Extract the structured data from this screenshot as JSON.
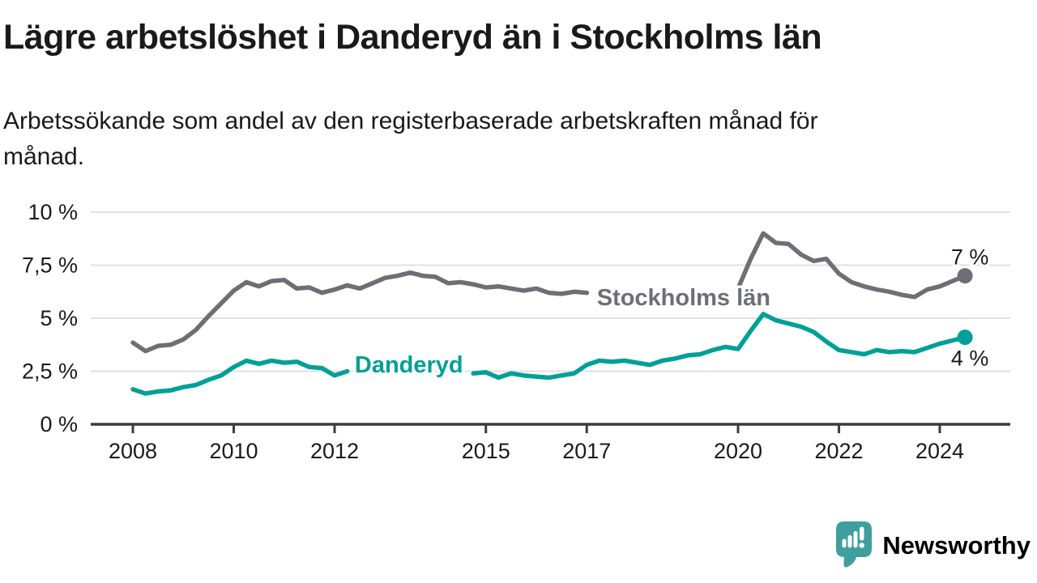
{
  "chart_data": {
    "type": "line",
    "title": "Lägre arbetslöshet i Danderyd än i Stockholms län",
    "subtitle": "Arbetssökande som andel av den registerbaserade arbetskraften månad för månad.",
    "unit": "%",
    "grid": "horizontal",
    "legend": "inline-labels",
    "ylim": [
      0,
      10
    ],
    "xlim": [
      2007.2,
      2025.4
    ],
    "x": [
      2008,
      2008.25,
      2008.5,
      2008.75,
      2009,
      2009.25,
      2009.5,
      2009.75,
      2010,
      2010.25,
      2010.5,
      2010.75,
      2011,
      2011.25,
      2011.5,
      2011.75,
      2012,
      2012.25,
      2012.5,
      2012.75,
      2013,
      2013.25,
      2013.5,
      2013.75,
      2014,
      2014.25,
      2014.5,
      2014.75,
      2015,
      2015.25,
      2015.5,
      2015.75,
      2016,
      2016.25,
      2016.5,
      2016.75,
      2017,
      2017.25,
      2017.5,
      2017.75,
      2018,
      2018.25,
      2018.5,
      2018.75,
      2019,
      2019.25,
      2019.5,
      2019.75,
      2020,
      2020.25,
      2020.5,
      2020.75,
      2021,
      2021.25,
      2021.5,
      2021.75,
      2022,
      2022.25,
      2022.5,
      2022.75,
      2023,
      2023.25,
      2023.5,
      2023.75,
      2024,
      2024.25,
      2024.5
    ],
    "series": [
      {
        "name": "Stockholms län",
        "color": "#6e6e77",
        "values": [
          3.85,
          3.45,
          3.7,
          3.75,
          4.0,
          4.45,
          5.1,
          5.7,
          6.3,
          6.7,
          6.5,
          6.75,
          6.8,
          6.4,
          6.45,
          6.2,
          6.35,
          6.55,
          6.4,
          6.65,
          6.9,
          7.0,
          7.15,
          7.0,
          6.95,
          6.65,
          6.7,
          6.6,
          6.45,
          6.5,
          6.4,
          6.3,
          6.4,
          6.2,
          6.15,
          6.25,
          6.2,
          6.1,
          6.05,
          6.0,
          5.95,
          5.9,
          5.9,
          5.95,
          6.0,
          6.0,
          6.05,
          6.1,
          6.4,
          7.8,
          9.0,
          8.55,
          8.5,
          8.0,
          7.7,
          7.8,
          7.1,
          6.7,
          6.5,
          6.35,
          6.25,
          6.1,
          6.0,
          6.35,
          6.5,
          6.75,
          7.0
        ],
        "label_gap": [
          2017.1,
          2019.9
        ],
        "label_pos": {
          "x": 2017.2,
          "y": 5.61
        },
        "end_label": "7 %",
        "end_label_side": "above"
      },
      {
        "name": "Danderyd",
        "color": "#00a098",
        "values": [
          1.65,
          1.45,
          1.55,
          1.6,
          1.75,
          1.85,
          2.1,
          2.3,
          2.7,
          3.0,
          2.85,
          3.0,
          2.9,
          2.95,
          2.7,
          2.65,
          2.3,
          2.5,
          2.55,
          2.6,
          2.65,
          2.7,
          2.7,
          2.65,
          2.7,
          2.6,
          2.55,
          2.4,
          2.45,
          2.2,
          2.4,
          2.3,
          2.25,
          2.2,
          2.3,
          2.4,
          2.8,
          3.0,
          2.95,
          3.0,
          2.9,
          2.8,
          3.0,
          3.1,
          3.25,
          3.3,
          3.5,
          3.65,
          3.55,
          4.4,
          5.2,
          4.9,
          4.75,
          4.6,
          4.35,
          3.9,
          3.5,
          3.4,
          3.3,
          3.5,
          3.4,
          3.45,
          3.4,
          3.6,
          3.8,
          3.95,
          4.1
        ],
        "label_gap": [
          2012.3,
          2014.7
        ],
        "label_pos": {
          "x": 2012.4,
          "y": 2.44
        },
        "end_label": "4 %",
        "end_label_side": "below"
      }
    ],
    "yticks": {
      "values": [
        0,
        2.5,
        5,
        7.5,
        10
      ],
      "labels": [
        "0 %",
        "2,5 %",
        "5 %",
        "7,5 %",
        "10 %"
      ]
    },
    "xticks": {
      "values": [
        2008,
        2010,
        2012,
        2015,
        2017,
        2020,
        2022,
        2024
      ],
      "labels": [
        "2008",
        "2010",
        "2012",
        "2015",
        "2017",
        "2020",
        "2022",
        "2024"
      ]
    }
  },
  "footer": {
    "brand": "Newsworthy"
  },
  "colors": {
    "text": "#1a1a1a",
    "axis": "#3d3d3d",
    "gridline": "#e2e2e2",
    "gray_series": "#6e6e77",
    "teal_series": "#00a098",
    "logo_teal": "#45a0a0"
  }
}
